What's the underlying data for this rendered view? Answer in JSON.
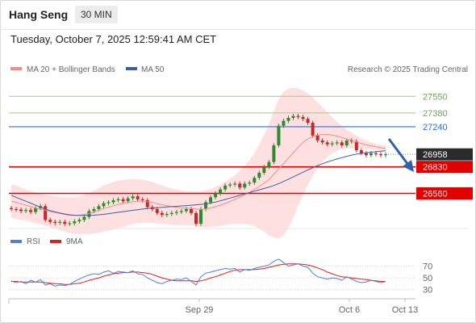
{
  "header": {
    "symbol": "Hang Seng",
    "interval": "30 MIN"
  },
  "timestamp": "Tuesday, October 7, 2025 12:59:41 AM CET",
  "legend": {
    "ma_bb": "MA 20 + Bollinger Bands",
    "ma50": "MA 50",
    "copyright": "Research © 2025 Trading Central",
    "rsi": "RSI",
    "ma9": "9MA"
  },
  "colors": {
    "candle_up": "#2e8b2e",
    "candle_down": "#c62828",
    "ma20": "#f28c8c",
    "bands_fill": "#ffd6d6",
    "ma50": "#3a5fa8",
    "support": "#e00000",
    "resistance_green": "#9dcf7a",
    "pivot_blue": "#2d6fd4",
    "rsi": "#4f7fd8",
    "rsi_ma": "#e02020",
    "last_price_bg": "#2b2b2b",
    "arrow": "#2f5fa8"
  },
  "chart_data": {
    "type": "candlestick",
    "x_labels": [
      "Sep 29",
      "Oct 6",
      "Oct 13"
    ],
    "ylim": [
      26350,
      27750
    ],
    "levels": [
      {
        "label": "27550",
        "value": 27550,
        "kind": "resistance"
      },
      {
        "label": "27380",
        "value": 27380,
        "kind": "resistance"
      },
      {
        "label": "27240",
        "value": 27240,
        "kind": "pivot"
      },
      {
        "label": "26830",
        "value": 26830,
        "kind": "support"
      },
      {
        "label": "26560",
        "value": 26560,
        "kind": "support"
      }
    ],
    "last_price": {
      "label": "26958",
      "value": 26958
    },
    "close": [
      26400,
      26395,
      26380,
      26390,
      26370,
      26410,
      26430,
      26290,
      26270,
      26260,
      26270,
      26250,
      26255,
      26275,
      26290,
      26320,
      26380,
      26400,
      26430,
      26460,
      26470,
      26490,
      26500,
      26480,
      26510,
      26530,
      26500,
      26490,
      26420,
      26400,
      26360,
      26340,
      26350,
      26360,
      26370,
      26380,
      26400,
      26360,
      26250,
      26400,
      26470,
      26520,
      26560,
      26600,
      26640,
      26650,
      26660,
      26620,
      26660,
      26670,
      26720,
      26770,
      26830,
      26880,
      27050,
      27250,
      27300,
      27330,
      27350,
      27340,
      27320,
      27280,
      27150,
      27100,
      27080,
      27060,
      27070,
      27080,
      27050,
      27100,
      27090,
      27000,
      26970,
      26950,
      26970,
      26960,
      26950,
      26958
    ],
    "ma20": [
      26480,
      26470,
      26455,
      26440,
      26425,
      26410,
      26400,
      26390,
      26375,
      26365,
      26355,
      26345,
      26338,
      26335,
      26338,
      26345,
      26355,
      26370,
      26388,
      26405,
      26420,
      26435,
      26448,
      26458,
      26468,
      26476,
      26480,
      26480,
      26476,
      26468,
      26455,
      26445,
      26435,
      26425,
      26418,
      26413,
      26410,
      26408,
      26400,
      26398,
      26402,
      26412,
      26425,
      26440,
      26458,
      26478,
      26500,
      26520,
      26545,
      26570,
      26600,
      26630,
      26665,
      26700,
      26755,
      26810,
      26865,
      26920,
      26975,
      27030,
      27080,
      27115,
      27140,
      27155,
      27160,
      27160,
      27155,
      27145,
      27130,
      27115,
      27100,
      27085,
      27070,
      27055,
      27045,
      27035,
      27025,
      27020
    ],
    "ma50": [
      26540,
      26520,
      26500,
      26480,
      26460,
      26440,
      26420,
      26400,
      26385,
      26372,
      26360,
      26350,
      26342,
      26338,
      26335,
      26335,
      26336,
      26338,
      26342,
      26347,
      26353,
      26360,
      26367,
      26374,
      26381,
      26388,
      26394,
      26400,
      26405,
      26410,
      26414,
      26418,
      26422,
      26425,
      26428,
      26432,
      26436,
      26440,
      26444,
      26448,
      26454,
      26462,
      26472,
      26484,
      26498,
      26512,
      26526,
      26540,
      26554,
      26568,
      26582,
      26596,
      26610,
      26624,
      26640,
      26660,
      26682,
      26705,
      26728,
      26752,
      26776,
      26800,
      26822,
      26843,
      26862,
      26880,
      26896,
      26911,
      26925,
      26938,
      26950,
      26960,
      26968,
      26975,
      26980,
      26985,
      26990,
      26995
    ],
    "bb_upper": [
      26650,
      26640,
      26620,
      26600,
      26580,
      26565,
      26555,
      26545,
      26535,
      26530,
      26525,
      26522,
      26520,
      26522,
      26530,
      26545,
      26565,
      26590,
      26615,
      26640,
      26660,
      26678,
      26690,
      26698,
      26702,
      26705,
      26705,
      26700,
      26690,
      26675,
      26658,
      26640,
      26625,
      26612,
      26600,
      26590,
      26583,
      26580,
      26580,
      26582,
      26590,
      26605,
      26625,
      26650,
      26680,
      26712,
      26748,
      26790,
      26840,
      26900,
      26970,
      27060,
      27160,
      27270,
      27400,
      27520,
      27600,
      27630,
      27640,
      27630,
      27610,
      27580,
      27540,
      27490,
      27440,
      27390,
      27340,
      27290,
      27250,
      27210,
      27180,
      27150,
      27120,
      27100,
      27080,
      27065,
      27055,
      27050
    ],
    "bb_lower": [
      26310,
      26300,
      26290,
      26280,
      26270,
      26255,
      26245,
      26235,
      26215,
      26200,
      26185,
      26168,
      26156,
      26148,
      26146,
      26145,
      26145,
      26150,
      26161,
      26170,
      26180,
      26192,
      26206,
      26218,
      26234,
      26247,
      26255,
      26260,
      26262,
      26261,
      26252,
      26250,
      26245,
      26238,
      26236,
      26236,
      26237,
      26236,
      26220,
      26214,
      26214,
      26219,
      26225,
      26230,
      26236,
      26244,
      26252,
      26250,
      26250,
      26240,
      26230,
      26200,
      26170,
      26130,
      26110,
      26100,
      26130,
      26210,
      26310,
      26430,
      26550,
      26650,
      26740,
      26820,
      26880,
      26930,
      26970,
      27000,
      27010,
      27020,
      27020,
      27020,
      27020,
      27010,
      27010,
      27005,
      26995,
      26990
    ],
    "rsi": {
      "ylim": [
        20,
        90
      ],
      "ticks": [
        70,
        50,
        30
      ],
      "values": [
        45,
        42,
        44,
        40,
        46,
        43,
        47,
        38,
        40,
        36,
        38,
        37,
        39,
        44,
        48,
        52,
        55,
        57,
        56,
        60,
        62,
        58,
        61,
        60,
        59,
        62,
        57,
        56,
        50,
        46,
        42,
        40,
        44,
        46,
        48,
        47,
        50,
        44,
        38,
        52,
        58,
        60,
        62,
        64,
        66,
        65,
        66,
        60,
        64,
        63,
        66,
        68,
        70,
        72,
        78,
        82,
        76,
        70,
        72,
        74,
        70,
        68,
        58,
        52,
        50,
        48,
        50,
        49,
        46,
        52,
        48,
        44,
        42,
        43,
        46,
        44,
        42,
        44
      ],
      "ma": [
        44,
        44,
        43,
        43,
        43,
        43,
        43,
        42,
        41,
        40,
        40,
        39,
        39,
        40,
        41,
        43,
        46,
        48,
        50,
        53,
        55,
        57,
        58,
        59,
        59,
        60,
        60,
        59,
        58,
        56,
        53,
        50,
        48,
        46,
        45,
        45,
        45,
        45,
        44,
        45,
        47,
        50,
        52,
        55,
        58,
        61,
        63,
        64,
        64,
        64,
        64,
        65,
        66,
        68,
        70,
        72,
        73,
        74,
        74,
        74,
        73,
        72,
        70,
        67,
        64,
        60,
        57,
        54,
        52,
        51,
        50,
        49,
        48,
        47,
        46,
        45,
        44,
        44
      ]
    }
  }
}
